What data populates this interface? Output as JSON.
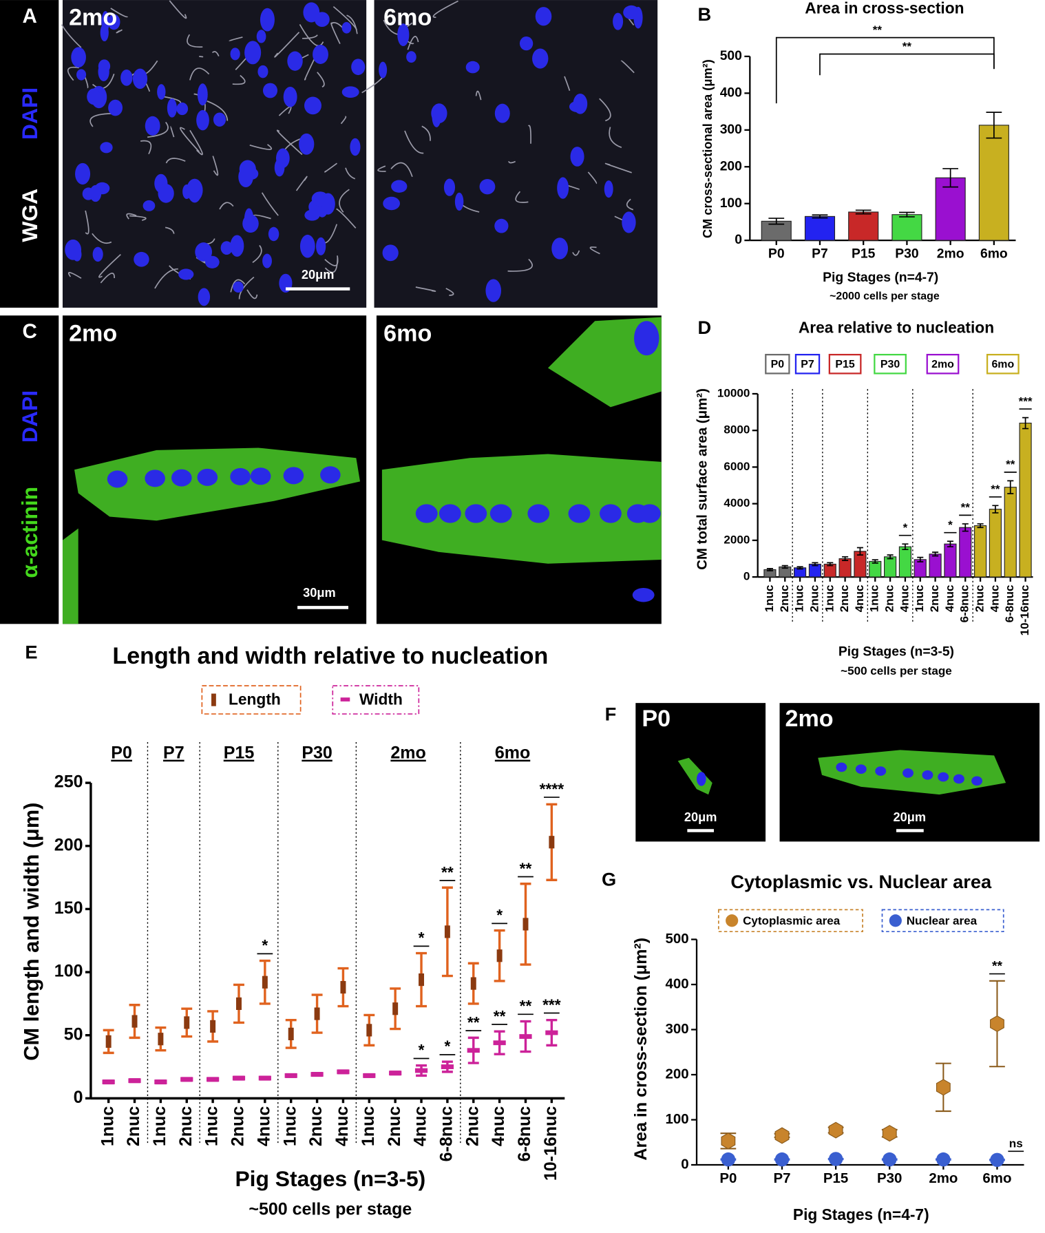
{
  "image_panels": [
    {
      "panel": "A",
      "stains": [
        "DAPI",
        "WGA"
      ],
      "labels": [
        "2mo",
        "6mo"
      ],
      "scale_bar": "20μm"
    },
    {
      "panel": "C",
      "stains": [
        "DAPI",
        "α-actinin"
      ],
      "labels": [
        "2mo",
        "6mo"
      ],
      "scale_bar": "30μm"
    },
    {
      "panel": "F",
      "labels": [
        "P0",
        "2mo"
      ],
      "scale_bars": [
        "20μm",
        "20μm"
      ]
    }
  ],
  "chart_data": [
    {
      "type": "bar",
      "panel": "B",
      "title": "Area in cross-section",
      "ylabel": "CM cross-sectional area (μm²)",
      "xlabel": "Pig Stages (n=4-7)",
      "subtitle": "~2000 cells per stage",
      "categories": [
        "P0",
        "P7",
        "P15",
        "P30",
        "2mo",
        "6mo"
      ],
      "colors": [
        "#6b6b6b",
        "#2323f0",
        "#c82828",
        "#44d844",
        "#9a10d0",
        "#c8b020"
      ],
      "values": [
        52,
        65,
        77,
        70,
        170,
        313
      ],
      "errors": [
        8,
        4,
        5,
        6,
        25,
        35
      ],
      "brackets": [
        {
          "from": 0,
          "to": 5,
          "label": "**"
        },
        {
          "from": 1,
          "to": 5,
          "label": "**"
        }
      ],
      "ylim": [
        0,
        500
      ],
      "yticks": [
        0,
        100,
        200,
        300,
        400,
        500
      ]
    },
    {
      "type": "bar",
      "panel": "D",
      "title": "Area relative to nucleation",
      "ylabel": "CM total surface area (μm²)",
      "xlabel": "Pig Stages (n=3-5)",
      "subtitle": "~500 cells per stage",
      "groups": [
        {
          "name": "P0",
          "color": "#6b6b6b",
          "categories": [
            "1nuc",
            "2nuc"
          ]
        },
        {
          "name": "P7",
          "color": "#2323f0",
          "categories": [
            "1nuc",
            "2nuc"
          ]
        },
        {
          "name": "P15",
          "color": "#c82828",
          "categories": [
            "1nuc",
            "2nuc",
            "4nuc"
          ]
        },
        {
          "name": "P30",
          "color": "#44d844",
          "categories": [
            "1nuc",
            "2nuc",
            "4nuc"
          ]
        },
        {
          "name": "2mo",
          "color": "#9a10d0",
          "categories": [
            "1nuc",
            "2nuc",
            "4nuc",
            "6-8nuc"
          ]
        },
        {
          "name": "6mo",
          "color": "#c8b020",
          "categories": [
            "2nuc",
            "4nuc",
            "6-8nuc",
            "10-16nuc"
          ]
        }
      ],
      "values": [
        400,
        550,
        500,
        700,
        700,
        1000,
        1400,
        850,
        1100,
        1650,
        950,
        1250,
        1800,
        2700,
        2800,
        3700,
        4900,
        8400
      ],
      "errors": [
        60,
        70,
        60,
        80,
        80,
        100,
        200,
        90,
        100,
        150,
        120,
        100,
        150,
        200,
        100,
        200,
        350,
        300
      ],
      "significance": [
        null,
        null,
        null,
        null,
        null,
        null,
        null,
        null,
        null,
        "*",
        null,
        null,
        "*",
        "**",
        null,
        "**",
        "**",
        "***"
      ],
      "ylim": [
        0,
        10000
      ],
      "yticks": [
        0,
        2000,
        4000,
        6000,
        8000,
        10000
      ]
    },
    {
      "type": "errorbar",
      "panel": "E",
      "title": "Length and width relative to nucleation",
      "ylabel": "CM length and width (μm)",
      "xlabel": "Pig Stages (n=3-5)",
      "subtitle": "~500 cells per stage",
      "groups": [
        {
          "name": "P0",
          "categories": [
            "1nuc",
            "2nuc"
          ]
        },
        {
          "name": "P7",
          "categories": [
            "1nuc",
            "2nuc"
          ]
        },
        {
          "name": "P15",
          "categories": [
            "1nuc",
            "2nuc",
            "4nuc"
          ]
        },
        {
          "name": "P30",
          "categories": [
            "1nuc",
            "2nuc",
            "4nuc"
          ]
        },
        {
          "name": "2mo",
          "categories": [
            "1nuc",
            "2nuc",
            "4nuc",
            "6-8nuc"
          ]
        },
        {
          "name": "6mo",
          "categories": [
            "2nuc",
            "4nuc",
            "6-8nuc",
            "10-16nuc"
          ]
        }
      ],
      "series": [
        {
          "name": "Length",
          "color": "#e0621e",
          "values": [
            45,
            61,
            47,
            60,
            57,
            75,
            92,
            51,
            67,
            88,
            54,
            71,
            94,
            132,
            91,
            113,
            138,
            203
          ],
          "errors": [
            9,
            13,
            9,
            11,
            12,
            15,
            17,
            11,
            15,
            15,
            12,
            16,
            21,
            35,
            16,
            20,
            32,
            30
          ],
          "significance": [
            null,
            null,
            null,
            null,
            null,
            null,
            "*",
            null,
            null,
            null,
            null,
            null,
            "*",
            "**",
            null,
            "*",
            "**",
            "****"
          ]
        },
        {
          "name": "Width",
          "color": "#cc2299",
          "values": [
            13,
            14,
            13,
            15,
            15,
            16,
            16,
            18,
            19,
            21,
            18,
            20,
            22,
            25,
            38,
            44,
            49,
            52
          ],
          "errors": [
            1,
            1,
            1,
            1,
            1,
            1,
            1,
            1,
            1,
            1,
            1,
            1,
            4,
            4,
            10,
            9,
            12,
            10
          ],
          "significance": [
            null,
            null,
            null,
            null,
            null,
            null,
            null,
            null,
            null,
            null,
            null,
            null,
            "*",
            "*",
            "**",
            "**",
            "**",
            "***"
          ]
        }
      ],
      "ylim": [
        0,
        250
      ],
      "yticks": [
        0,
        50,
        100,
        150,
        200,
        250
      ]
    },
    {
      "type": "errorbar",
      "panel": "G",
      "title": "Cytoplasmic vs. Nuclear area",
      "ylabel": "Area in cross-section (μm²)",
      "xlabel": "Pig Stages (n=4-7)",
      "categories": [
        "P0",
        "P7",
        "P15",
        "P30",
        "2mo",
        "6mo"
      ],
      "series": [
        {
          "name": "Cytoplasmic area",
          "color": "#c8842c",
          "values": [
            53,
            65,
            77,
            70,
            172,
            313
          ],
          "errors": [
            17,
            4,
            6,
            8,
            53,
            95
          ],
          "significance": [
            null,
            null,
            null,
            null,
            null,
            "**"
          ]
        },
        {
          "name": "Nuclear area",
          "color": "#3a5fd0",
          "values": [
            12,
            12,
            13,
            12,
            12,
            11
          ],
          "errors": [
            1,
            1,
            1,
            1,
            1,
            1
          ],
          "significance": [
            null,
            null,
            null,
            null,
            null,
            "ns"
          ]
        }
      ],
      "ylim": [
        0,
        500
      ],
      "yticks": [
        0,
        100,
        200,
        300,
        400,
        500
      ]
    }
  ]
}
